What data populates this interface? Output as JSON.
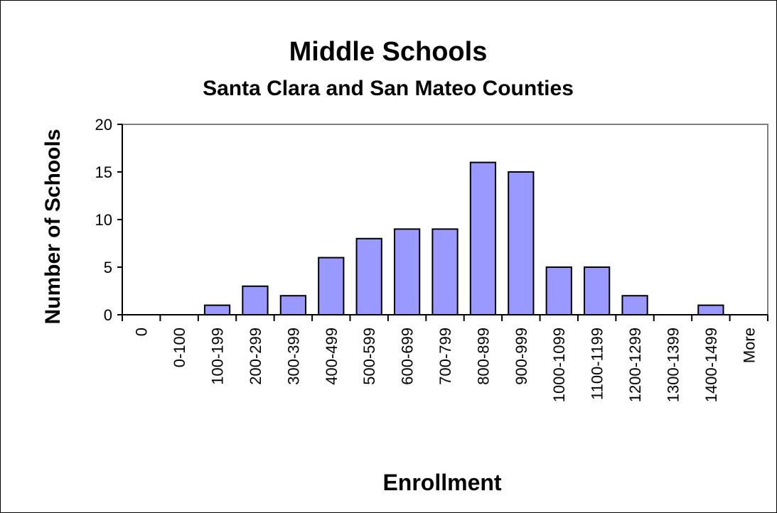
{
  "chart_data": {
    "type": "bar",
    "title": "Middle Schools",
    "subtitle": "Santa Clara and San Mateo Counties",
    "xlabel": "Enrollment",
    "ylabel": "Number of Schools",
    "categories": [
      "0",
      "0-100",
      "100-199",
      "200-299",
      "300-399",
      "400-499",
      "500-599",
      "600-699",
      "700-799",
      "800-899",
      "900-999",
      "1000-1099",
      "1100-1199",
      "1200-1299",
      "1300-1399",
      "1400-1499",
      "More"
    ],
    "values": [
      0,
      0,
      1,
      3,
      2,
      6,
      8,
      9,
      9,
      16,
      15,
      5,
      5,
      2,
      0,
      1,
      0
    ],
    "ylim": [
      0,
      20
    ],
    "yticks": [
      "0",
      "5",
      "10",
      "15",
      "20"
    ],
    "grid": false,
    "legend": "none",
    "colors": {
      "bar_fill": "#9999ff",
      "bar_stroke": "#000000",
      "plot_border": "#808080"
    }
  }
}
